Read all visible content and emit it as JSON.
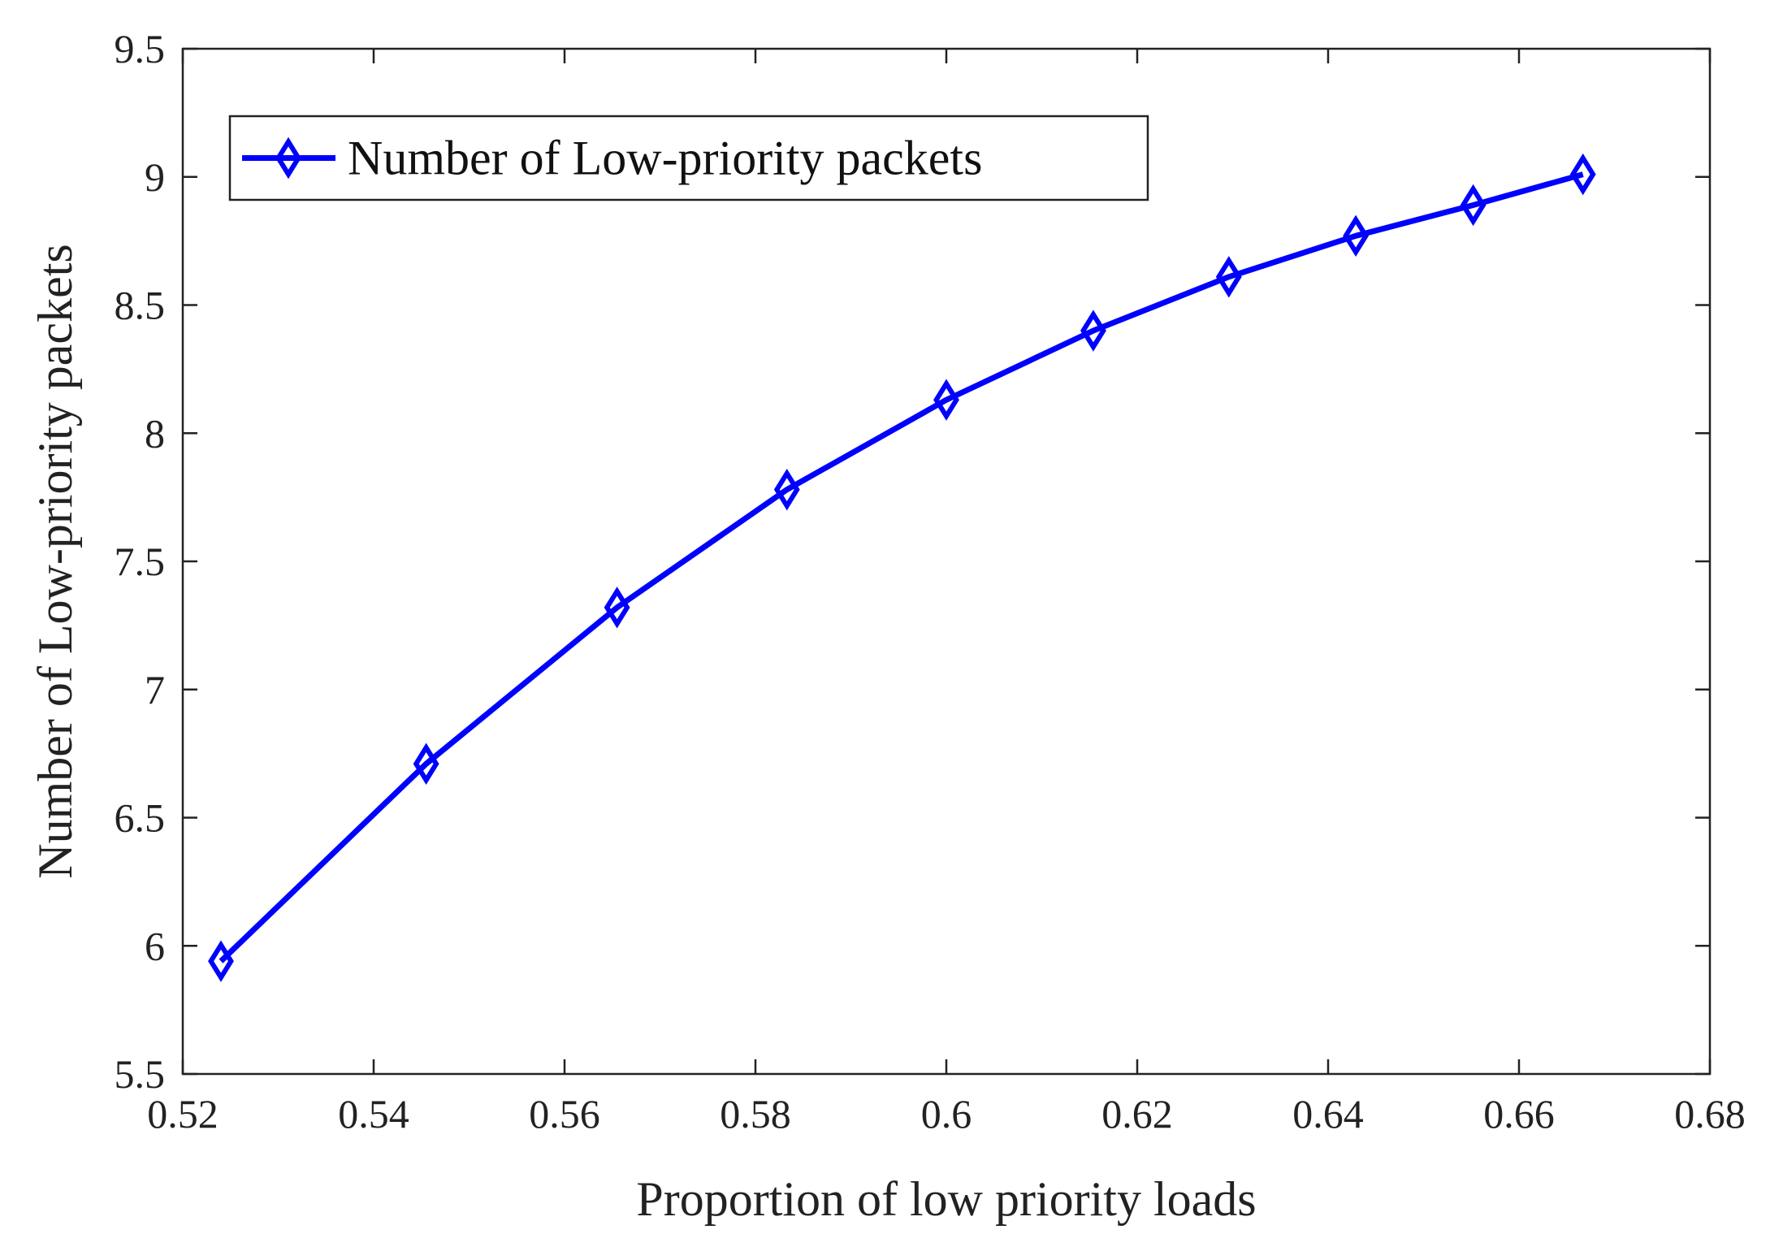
{
  "chart_data": {
    "type": "line",
    "title": "",
    "xlabel": "Proportion of low priority loads",
    "ylabel": "Number of Low-priority packets",
    "xlim": [
      0.52,
      0.68
    ],
    "ylim": [
      5.5,
      9.5
    ],
    "xticks": [
      "0.52",
      "0.54",
      "0.56",
      "0.58",
      "0.6",
      "0.62",
      "0.64",
      "0.66",
      "0.68"
    ],
    "yticks": [
      "5.5",
      "6",
      "6.5",
      "7",
      "7.5",
      "8",
      "8.5",
      "9",
      "9.5"
    ],
    "grid": false,
    "legend_position": "top-left",
    "series": [
      {
        "name": "Number of Low-priority packets",
        "color": "#0000ff",
        "marker": "diamond",
        "x": [
          0.524,
          0.5455,
          0.5655,
          0.5833,
          0.6,
          0.6154,
          0.6296,
          0.6429,
          0.6552,
          0.6667
        ],
        "y": [
          5.94,
          6.71,
          7.32,
          7.78,
          8.13,
          8.4,
          8.61,
          8.77,
          8.89,
          9.01
        ]
      }
    ]
  }
}
